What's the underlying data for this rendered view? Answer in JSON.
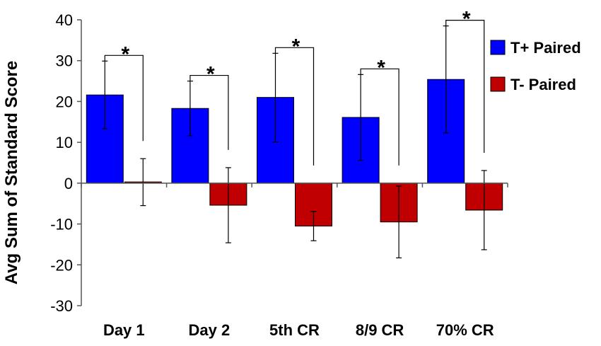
{
  "chart_data": {
    "type": "bar",
    "title": "",
    "xlabel": "",
    "ylabel": "Avg Sum of Standard Score",
    "ylim": [
      -30,
      40
    ],
    "yticks": [
      -30,
      -20,
      -10,
      0,
      10,
      20,
      30,
      40
    ],
    "categories": [
      "Day 1",
      "Day 2",
      "5th CR",
      "8/9 CR",
      "70% CR"
    ],
    "series": [
      {
        "name": "T+ Paired",
        "color": "#0000ff",
        "values": [
          21.6,
          18.3,
          21.0,
          16.1,
          25.4
        ],
        "error_low": [
          13.3,
          11.6,
          10.1,
          5.6,
          12.3
        ],
        "error_high": [
          29.9,
          25.0,
          31.8,
          26.6,
          38.5
        ]
      },
      {
        "name": "T- Paired",
        "color": "#c00000",
        "values": [
          0.3,
          -5.4,
          -10.5,
          -9.5,
          -6.6
        ],
        "error_low": [
          -5.5,
          -14.6,
          -14.1,
          -18.3,
          -16.3
        ],
        "error_high": [
          6.0,
          3.8,
          -6.9,
          -0.7,
          3.1
        ]
      }
    ],
    "significance": [
      {
        "category": "Day 1",
        "label": "*"
      },
      {
        "category": "Day 2",
        "label": "*"
      },
      {
        "category": "5th CR",
        "label": "*"
      },
      {
        "category": "8/9 CR",
        "label": "*"
      },
      {
        "category": "70% CR",
        "label": "*"
      }
    ],
    "legend": "right"
  }
}
